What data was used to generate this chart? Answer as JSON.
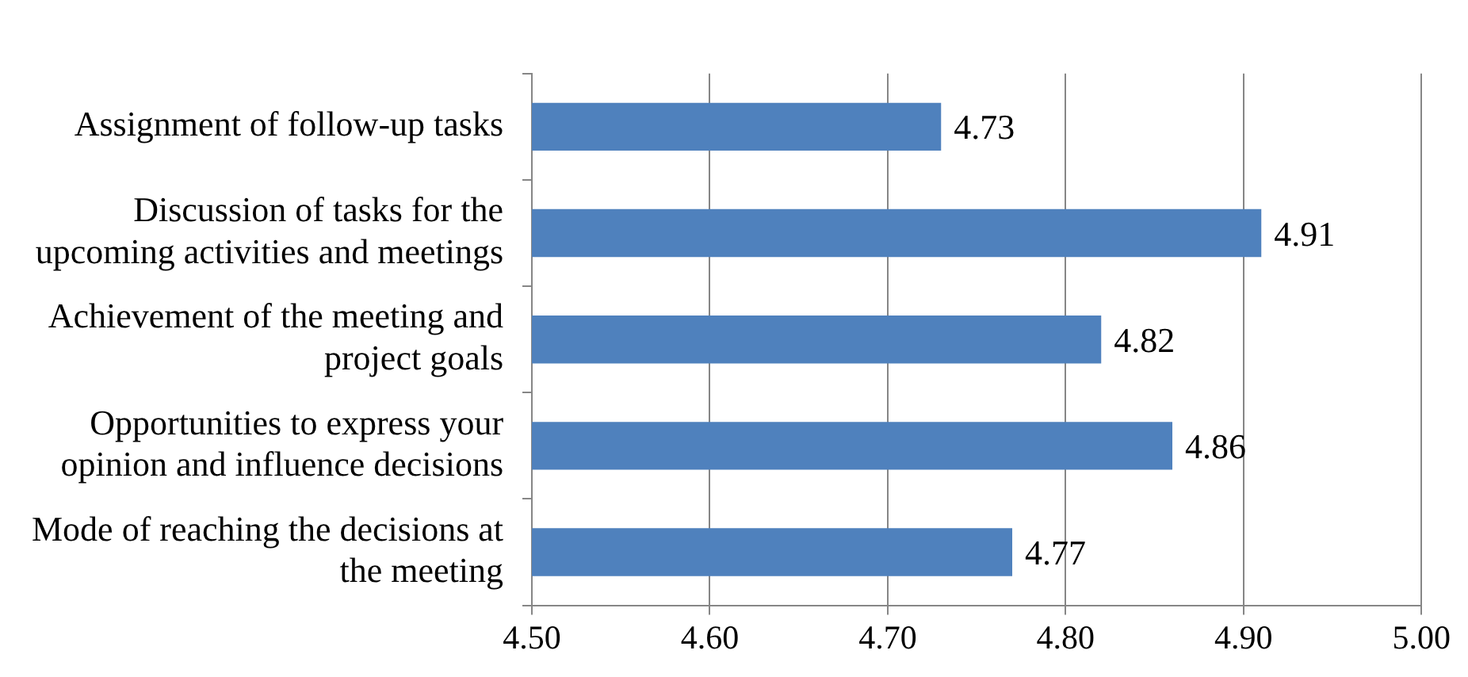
{
  "chart_data": {
    "type": "bar",
    "orientation": "horizontal",
    "categories": [
      "Assignment of follow-up tasks",
      "Discussion of tasks for the upcoming activities and meetings",
      "Achievement of the meeting and project goals",
      "Opportunities to express your opinion and influence decisions",
      "Mode of reaching the decisions at the meeting"
    ],
    "values": [
      4.73,
      4.91,
      4.82,
      4.86,
      4.77
    ],
    "color": "#4f81bd",
    "xlim": [
      4.5,
      5.0
    ],
    "xticks": [
      {
        "value": 4.5,
        "label": "4.50"
      },
      {
        "value": 4.6,
        "label": "4.60"
      },
      {
        "value": 4.7,
        "label": "4.70"
      },
      {
        "value": 4.8,
        "label": "4.80"
      },
      {
        "value": 4.9,
        "label": "4.90"
      },
      {
        "value": 5.0,
        "label": "5.00"
      }
    ],
    "grid": "x",
    "legend": false,
    "data_labels": true
  }
}
